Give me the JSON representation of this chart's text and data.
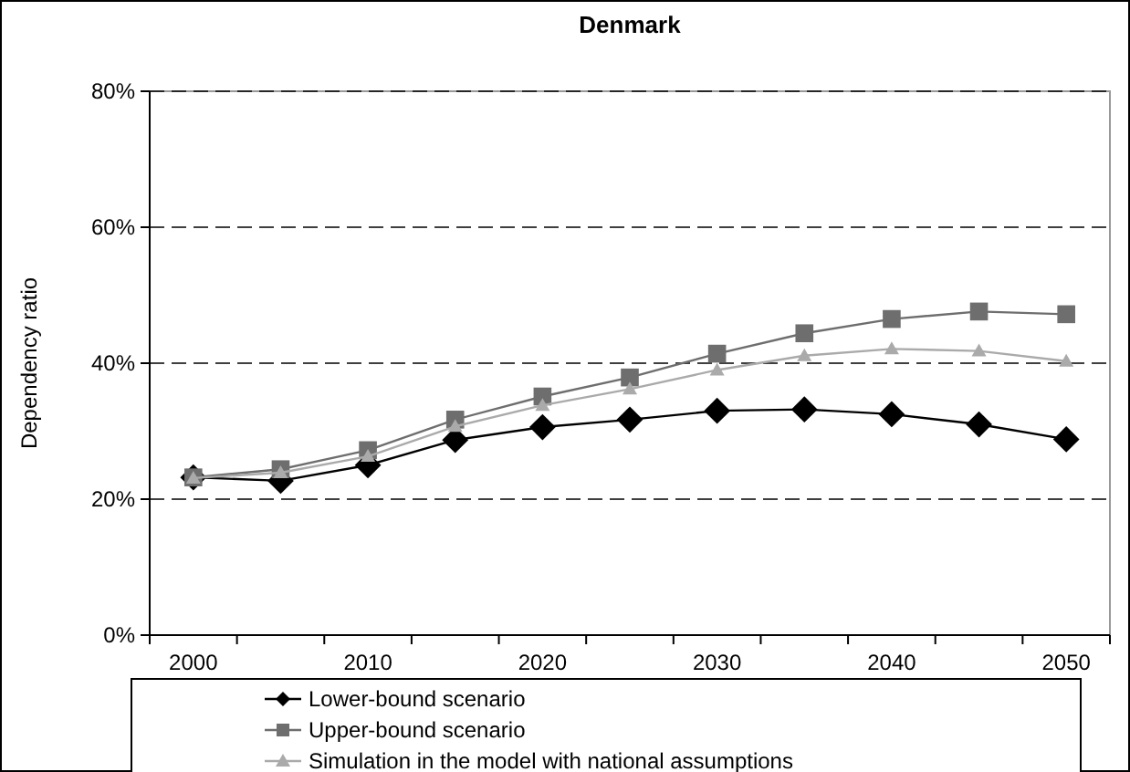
{
  "chart_data": {
    "type": "line",
    "title": "Denmark",
    "ylabel": "Dependency ratio",
    "categories": [
      "2000",
      null,
      "2010",
      null,
      "2020",
      null,
      "2030",
      null,
      "2040",
      null,
      "2050"
    ],
    "ylim": [
      0,
      80
    ],
    "yticks": [
      {
        "value": 0,
        "label": "0%"
      },
      {
        "value": 20,
        "label": "20%"
      },
      {
        "value": 40,
        "label": "40%"
      },
      {
        "value": 60,
        "label": "60%"
      },
      {
        "value": 80,
        "label": "80%"
      }
    ],
    "grid": "y",
    "legend": "bottom",
    "series": [
      {
        "name": "Lower-bound scenario",
        "color": "#000000",
        "marker": "diamond",
        "values": [
          23.2,
          22.7,
          25.0,
          28.7,
          30.6,
          31.7,
          33.0,
          33.2,
          32.5,
          31.0,
          28.8
        ]
      },
      {
        "name": "Upper-bound scenario",
        "color": "#6e6e6e",
        "marker": "square",
        "values": [
          23.2,
          24.4,
          27.2,
          31.7,
          35.1,
          37.9,
          41.4,
          44.4,
          46.5,
          47.6,
          47.2
        ]
      },
      {
        "name": "Simulation in the model with national assumptions",
        "color": "#aaaaaa",
        "marker": "triangle",
        "values": [
          23.1,
          23.9,
          26.3,
          30.7,
          33.8,
          36.2,
          39.0,
          41.1,
          42.1,
          41.8,
          40.3
        ]
      }
    ]
  }
}
